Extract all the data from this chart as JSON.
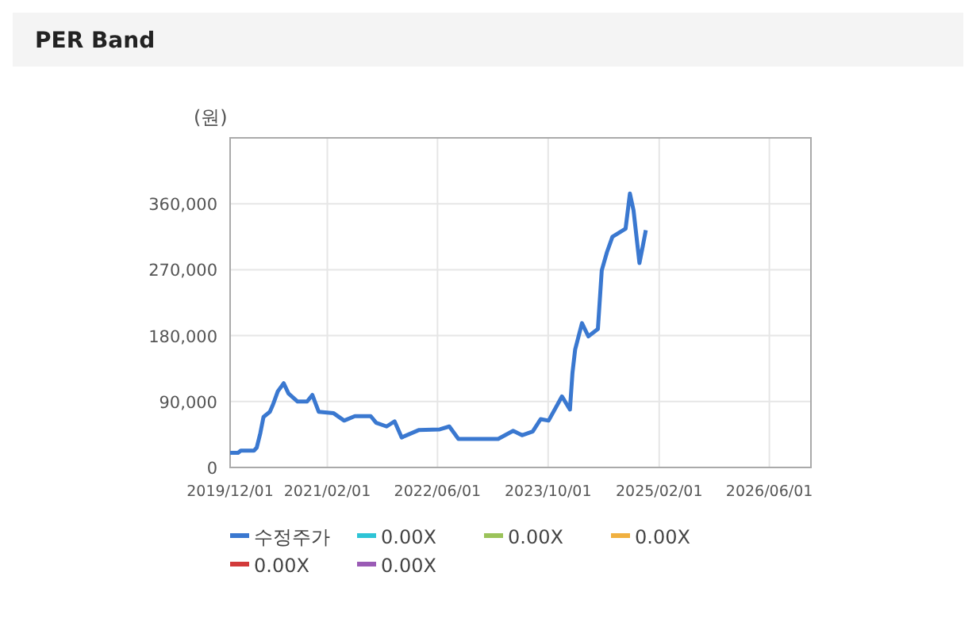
{
  "chart_data": {
    "type": "line",
    "title": "PER Band",
    "ylabel": "(원)",
    "xlim": [
      "2019-12-01",
      "2026-12-01"
    ],
    "xticks": [
      {
        "value": "2019-12-01",
        "label": "2019/12/01"
      },
      {
        "value": "2021-02-01",
        "label": "2021/02/01"
      },
      {
        "value": "2022-06-01",
        "label": "2022/06/01"
      },
      {
        "value": "2023-10-01",
        "label": "2023/10/01"
      },
      {
        "value": "2025-02-01",
        "label": "2025/02/01"
      },
      {
        "value": "2026-06-01",
        "label": "2026/06/01"
      }
    ],
    "ylim": [
      0,
      450000
    ],
    "yticks": [
      {
        "value": 0,
        "label": "0"
      },
      {
        "value": 90000,
        "label": "90,000"
      },
      {
        "value": 180000,
        "label": "180,000"
      },
      {
        "value": 270000,
        "label": "270,000"
      },
      {
        "value": 360000,
        "label": "360,000"
      }
    ],
    "grid": true,
    "legend": "bottom",
    "marker": "none",
    "line_style": "solid",
    "series": [
      {
        "name": "수정주가",
        "color": "#3a78d0",
        "x": [
          "2019-12-01",
          "2020-01-05",
          "2020-01-17",
          "2020-03-15",
          "2020-03-27",
          "2020-04-12",
          "2020-04-26",
          "2020-05-24",
          "2020-06-07",
          "2020-06-28",
          "2020-07-24",
          "2020-08-14",
          "2020-09-23",
          "2020-11-04",
          "2020-11-27",
          "2020-12-25",
          "2021-03-01",
          "2021-04-16",
          "2021-06-02",
          "2021-08-11",
          "2021-09-04",
          "2021-10-20",
          "2021-11-24",
          "2021-12-25",
          "2022-03-10",
          "2022-06-11",
          "2022-07-23",
          "2022-09-01",
          "2023-02-23",
          "2023-04-30",
          "2023-06-08",
          "2023-07-25",
          "2023-08-29",
          "2023-10-03",
          "2023-12-01",
          "2024-01-05",
          "2024-01-16",
          "2024-01-28",
          "2024-02-27",
          "2024-03-26",
          "2024-05-07",
          "2024-05-24",
          "2024-06-16",
          "2024-07-10",
          "2024-09-06",
          "2024-09-25",
          "2024-10-11",
          "2024-11-06",
          "2024-11-20",
          "2024-12-04"
        ],
        "values": [
          20000,
          20000,
          23000,
          23000,
          27000,
          47000,
          69000,
          76000,
          86000,
          104000,
          115000,
          101000,
          90000,
          90000,
          99000,
          76000,
          74000,
          64000,
          70000,
          70000,
          61000,
          56000,
          63000,
          41000,
          51000,
          52000,
          56000,
          39000,
          39000,
          50000,
          44000,
          49000,
          66000,
          64000,
          97000,
          79000,
          129000,
          161000,
          197000,
          179000,
          189000,
          269000,
          294000,
          315000,
          326000,
          374000,
          351000,
          279000,
          301000,
          324000
        ]
      },
      {
        "name": "0.00X",
        "color": "#2ec4d6"
      },
      {
        "name": "0.00X",
        "color": "#9bc35a"
      },
      {
        "name": "0.00X",
        "color": "#f0b040"
      },
      {
        "name": "0.00X",
        "color": "#d23a3a"
      },
      {
        "name": "0.00X",
        "color": "#9a5bb5"
      }
    ]
  }
}
